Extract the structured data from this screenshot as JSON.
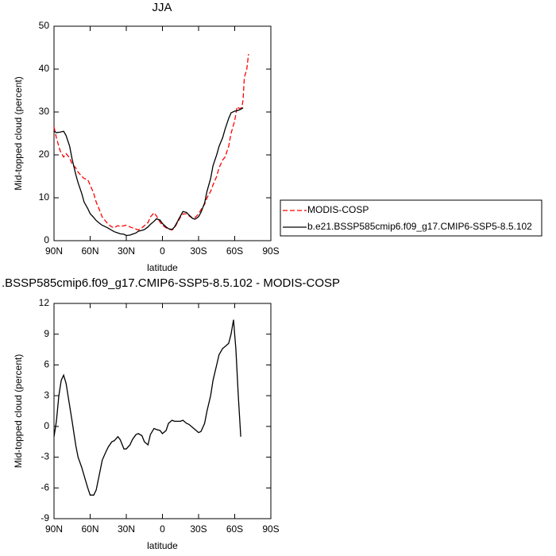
{
  "chart_data": [
    {
      "type": "line",
      "title": "JJA",
      "xlabel": "latitude",
      "ylabel": "Mid-topped cloud (percent)",
      "xlim": [
        90,
        -90
      ],
      "ylim": [
        0,
        50
      ],
      "xticks": [
        {
          "value": 90,
          "label": "90N"
        },
        {
          "value": 60,
          "label": "60N"
        },
        {
          "value": 30,
          "label": "30N"
        },
        0,
        {
          "value": -30,
          "label": "30S"
        },
        {
          "value": -60,
          "label": "60S"
        },
        {
          "value": -90,
          "label": "90S"
        }
      ],
      "yticks": [
        0,
        10,
        20,
        30,
        40,
        50
      ],
      "legend": "outside-right",
      "x": [
        90,
        88,
        85,
        82,
        80,
        77,
        75,
        72,
        70,
        67,
        65,
        62,
        60,
        57,
        55,
        52,
        50,
        47,
        45,
        42,
        40,
        37,
        35,
        32,
        30,
        27,
        25,
        22,
        20,
        17,
        15,
        12,
        10,
        7,
        5,
        2,
        0,
        -3,
        -5,
        -8,
        -10,
        -12,
        -15,
        -17,
        -20,
        -22,
        -25,
        -27,
        -30,
        -32,
        -35,
        -37,
        -40,
        -42,
        -45,
        -47,
        -50,
        -52,
        -55,
        -57,
        -60,
        -62,
        -64,
        -66,
        -67,
        -68,
        -70,
        -71.5
      ],
      "series": [
        {
          "name": "MODIS-COSP",
          "color": "#ff0000",
          "dashed": true,
          "values": [
            26.5,
            24,
            21,
            19.5,
            20.3,
            19.3,
            17.8,
            17,
            16,
            15,
            14.5,
            14.2,
            13,
            11,
            9,
            7,
            5.5,
            4.5,
            3.8,
            3.2,
            3,
            3.5,
            3.3,
            3.5,
            3.6,
            3.2,
            3,
            2.7,
            2.5,
            3,
            3.5,
            4.2,
            5.5,
            6.5,
            5.8,
            4.3,
            3.6,
            3,
            2.7,
            2.5,
            3,
            4,
            5.5,
            6.2,
            6.3,
            5.8,
            5.2,
            5.4,
            6.2,
            7.2,
            8.5,
            10,
            11.5,
            13,
            15,
            17,
            18.8,
            19.5,
            22,
            25,
            28,
            31.2,
            30.8,
            31,
            33,
            38,
            40,
            43.5
          ]
        },
        {
          "name": "b.e21.BSSP585cmip6.f09_g17.CMIP6-SSP5-8.5.102",
          "color": "#000000",
          "dashed": false,
          "values": [
            25.5,
            25.2,
            25.3,
            25.5,
            24.5,
            22,
            19,
            15.5,
            13.5,
            11,
            9,
            7.5,
            6.3,
            5.4,
            4.7,
            4,
            3.6,
            3.2,
            2.9,
            2.4,
            2.1,
            1.8,
            1.6,
            1.5,
            1.2,
            1.3,
            1.5,
            1.8,
            2.2,
            2.4,
            2.6,
            3.2,
            3.8,
            4.5,
            5.1,
            4.8,
            4,
            3.2,
            2.8,
            2.6,
            3.2,
            4.2,
            5.8,
            6.8,
            6.6,
            6,
            5.2,
            5.0,
            5.6,
            6.6,
            8.8,
            11.5,
            14.5,
            17.5,
            20,
            22,
            24,
            26,
            28.5,
            29.8,
            30.2,
            30.3,
            30.5,
            30.8,
            31,
            null,
            null,
            null
          ]
        }
      ]
    },
    {
      "type": "line",
      "title": ".BSSP585cmip6.f09_g17.CMIP6-SSP5-8.5.102 - MODIS-COSP",
      "xlabel": "latitude",
      "ylabel": "Mid-topped cloud (percent)",
      "xlim": [
        90,
        -90
      ],
      "ylim": [
        -9,
        12
      ],
      "xticks": [
        {
          "value": 90,
          "label": "90N"
        },
        {
          "value": 60,
          "label": "60N"
        },
        {
          "value": 30,
          "label": "30N"
        },
        0,
        {
          "value": -30,
          "label": "30S"
        },
        {
          "value": -60,
          "label": "60S"
        },
        {
          "value": -90,
          "label": "90S"
        }
      ],
      "yticks": [
        -9,
        -6,
        -3,
        0,
        3,
        6,
        9,
        12
      ],
      "x": [
        90,
        88,
        86,
        84,
        82,
        80,
        77,
        75,
        72,
        70,
        67,
        65,
        62,
        60,
        57,
        55,
        52,
        50,
        47,
        45,
        42,
        40,
        37,
        35,
        32,
        30,
        27,
        25,
        22,
        20,
        17,
        15,
        12,
        10,
        7,
        5,
        2,
        0,
        -3,
        -5,
        -8,
        -10,
        -12,
        -15,
        -17,
        -20,
        -22,
        -25,
        -27,
        -30,
        -32,
        -35,
        -37,
        -40,
        -42,
        -45,
        -47,
        -50,
        -52,
        -55,
        -57,
        -59,
        -61,
        -63,
        -65
      ],
      "series": [
        {
          "color": "#000000",
          "dashed": false,
          "values": [
            -1,
            0.5,
            3,
            4.5,
            5,
            4.2,
            2,
            0.5,
            -1.8,
            -3,
            -4,
            -4.8,
            -6,
            -6.7,
            -6.7,
            -6.2,
            -4.5,
            -3.3,
            -2.5,
            -2,
            -1.5,
            -1.4,
            -1,
            -1.3,
            -2.2,
            -2.2,
            -1.8,
            -1.3,
            -0.8,
            -0.7,
            -0.9,
            -1.5,
            -1.8,
            -0.8,
            -0.2,
            -0.3,
            -0.4,
            -0.7,
            -0.4,
            0.3,
            0.6,
            0.5,
            0.5,
            0.5,
            0.6,
            0.3,
            0.2,
            -0.1,
            -0.3,
            -0.6,
            -0.5,
            0.3,
            1.5,
            3,
            4.5,
            6,
            7,
            7.6,
            7.8,
            8.1,
            9,
            10.4,
            7.5,
            3,
            -1
          ]
        }
      ]
    }
  ]
}
